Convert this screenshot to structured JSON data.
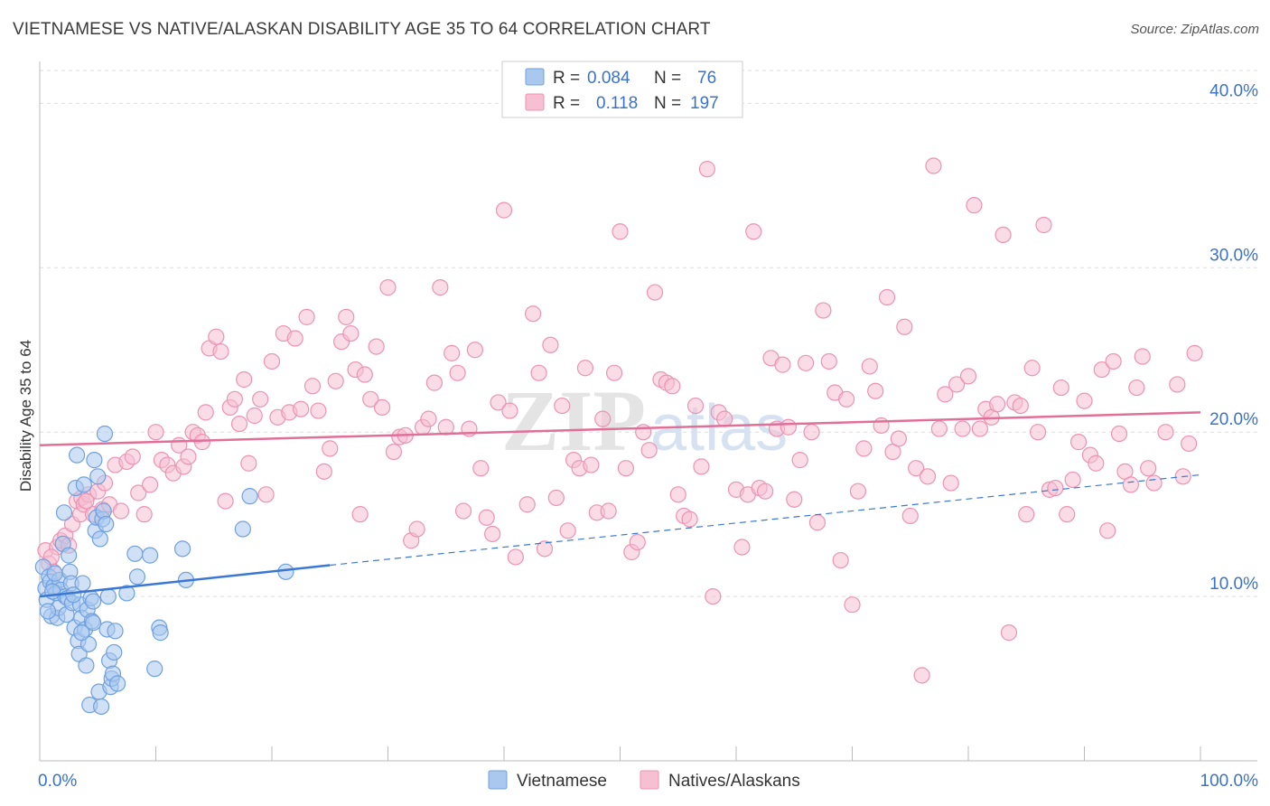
{
  "header": {
    "title": "VIETNAMESE VS NATIVE/ALASKAN DISABILITY AGE 35 TO 64 CORRELATION CHART",
    "source": "Source: ZipAtlas.com"
  },
  "legend": {
    "r_label": "R =",
    "n_label": "N =",
    "series": [
      {
        "r": "0.084",
        "n": "76"
      },
      {
        "r": "0.118",
        "n": "197"
      }
    ]
  },
  "watermark": {
    "zip": "ZIP",
    "atlas": "atlas"
  },
  "colors": {
    "blue_fill": "#aac8ee",
    "blue_stroke": "#6fa0e0",
    "blue_line": "#3a78d4",
    "pink_fill": "#f6bfd2",
    "pink_stroke": "#ec93b3",
    "pink_line": "#e07098",
    "axis_label": "#3a72c8"
  },
  "chart_data": {
    "type": "scatter",
    "title": "VIETNAMESE VS NATIVE/ALASKAN DISABILITY AGE 35 TO 64 CORRELATION CHART",
    "xlabel": "",
    "ylabel": "Disability Age 35 to 64",
    "xlim": [
      0,
      100
    ],
    "ylim": [
      0,
      42
    ],
    "x_tick_labels": [
      "0.0%",
      "100.0%"
    ],
    "y_ticks": [
      10,
      20,
      30,
      40
    ],
    "y_tick_labels": [
      "10.0%",
      "20.0%",
      "30.0%",
      "40.0%"
    ],
    "grid": true,
    "legend_position": "top-center",
    "series": [
      {
        "name": "Vietnamese",
        "r": 0.084,
        "n": 76,
        "trend": {
          "x0": 0,
          "y0": 10.0,
          "x1": 25,
          "y1": 11.9,
          "dashed_to_x": 100,
          "dashed_to_y": 17.4
        },
        "points": [
          [
            0.3,
            11.8
          ],
          [
            0.5,
            10.5
          ],
          [
            0.6,
            9.8
          ],
          [
            0.8,
            11.2
          ],
          [
            0.9,
            10.9
          ],
          [
            1.0,
            8.8
          ],
          [
            1.2,
            10.6
          ],
          [
            1.4,
            10.2
          ],
          [
            1.5,
            8.7
          ],
          [
            1.6,
            9.3
          ],
          [
            1.7,
            11.0
          ],
          [
            1.8,
            10.4
          ],
          [
            2.0,
            13.2
          ],
          [
            2.1,
            15.1
          ],
          [
            2.2,
            10.0
          ],
          [
            2.3,
            8.9
          ],
          [
            2.4,
            9.9
          ],
          [
            2.5,
            12.5
          ],
          [
            2.6,
            11.5
          ],
          [
            2.7,
            10.8
          ],
          [
            2.8,
            9.6
          ],
          [
            3.0,
            8.1
          ],
          [
            3.1,
            16.6
          ],
          [
            3.2,
            18.6
          ],
          [
            3.3,
            7.3
          ],
          [
            3.4,
            6.5
          ],
          [
            3.5,
            9.5
          ],
          [
            3.6,
            8.7
          ],
          [
            3.7,
            10.8
          ],
          [
            3.8,
            16.8
          ],
          [
            3.9,
            8.0
          ],
          [
            4.0,
            5.8
          ],
          [
            4.1,
            9.2
          ],
          [
            4.2,
            7.1
          ],
          [
            4.3,
            3.4
          ],
          [
            4.4,
            9.9
          ],
          [
            4.5,
            8.5
          ],
          [
            4.6,
            9.7
          ],
          [
            4.7,
            18.3
          ],
          [
            4.8,
            14.0
          ],
          [
            4.9,
            14.8
          ],
          [
            5.0,
            17.3
          ],
          [
            5.1,
            4.2
          ],
          [
            5.2,
            13.5
          ],
          [
            5.3,
            3.3
          ],
          [
            5.4,
            14.7
          ],
          [
            5.5,
            15.2
          ],
          [
            5.6,
            19.9
          ],
          [
            5.7,
            14.4
          ],
          [
            5.8,
            8.0
          ],
          [
            6.0,
            6.1
          ],
          [
            6.1,
            4.5
          ],
          [
            6.2,
            5.0
          ],
          [
            6.3,
            5.3
          ],
          [
            6.4,
            6.6
          ],
          [
            6.5,
            7.9
          ],
          [
            6.7,
            4.7
          ],
          [
            7.5,
            10.2
          ],
          [
            8.2,
            12.6
          ],
          [
            8.4,
            11.2
          ],
          [
            9.5,
            12.5
          ],
          [
            9.9,
            5.6
          ],
          [
            10.3,
            8.1
          ],
          [
            10.4,
            7.8
          ],
          [
            12.3,
            12.9
          ],
          [
            12.6,
            11.0
          ],
          [
            17.5,
            14.1
          ],
          [
            18.1,
            16.1
          ],
          [
            21.2,
            11.5
          ],
          [
            1.1,
            10.3
          ],
          [
            0.7,
            9.1
          ],
          [
            1.3,
            11.4
          ],
          [
            2.9,
            10.1
          ],
          [
            4.6,
            8.4
          ],
          [
            5.9,
            10.0
          ],
          [
            3.6,
            7.8
          ]
        ]
      },
      {
        "name": "Natives/Alaskans",
        "r": 0.118,
        "n": 197,
        "trend": {
          "x0": 0,
          "y0": 19.2,
          "x1": 100,
          "y1": 21.2
        },
        "points": [
          [
            0.5,
            12.8
          ],
          [
            0.8,
            12.0
          ],
          [
            1.2,
            11.5
          ],
          [
            1.5,
            13.0
          ],
          [
            1.8,
            13.4
          ],
          [
            2.2,
            13.7
          ],
          [
            2.8,
            14.4
          ],
          [
            3.2,
            15.8
          ],
          [
            3.5,
            15.0
          ],
          [
            3.6,
            16.0
          ],
          [
            3.8,
            15.6
          ],
          [
            4.2,
            16.2
          ],
          [
            4.6,
            15.0
          ],
          [
            5.0,
            16.4
          ],
          [
            5.4,
            15.3
          ],
          [
            5.6,
            16.9
          ],
          [
            6.0,
            15.6
          ],
          [
            6.5,
            18.0
          ],
          [
            7.0,
            15.2
          ],
          [
            7.5,
            18.2
          ],
          [
            8.0,
            18.5
          ],
          [
            8.5,
            16.3
          ],
          [
            9.0,
            15.0
          ],
          [
            9.5,
            16.8
          ],
          [
            10.0,
            20.0
          ],
          [
            10.5,
            18.3
          ],
          [
            11.0,
            18.0
          ],
          [
            11.5,
            17.5
          ],
          [
            12.0,
            19.2
          ],
          [
            12.4,
            17.9
          ],
          [
            12.8,
            18.5
          ],
          [
            13.2,
            20.0
          ],
          [
            13.6,
            19.8
          ],
          [
            14.0,
            19.4
          ],
          [
            14.3,
            21.2
          ],
          [
            14.6,
            25.1
          ],
          [
            15.2,
            25.8
          ],
          [
            15.6,
            24.9
          ],
          [
            16.0,
            15.8
          ],
          [
            16.4,
            21.5
          ],
          [
            16.8,
            22.0
          ],
          [
            17.2,
            20.5
          ],
          [
            17.6,
            23.2
          ],
          [
            18.0,
            18.1
          ],
          [
            18.5,
            21.0
          ],
          [
            19.0,
            22.0
          ],
          [
            19.5,
            16.2
          ],
          [
            20.0,
            24.3
          ],
          [
            20.5,
            20.9
          ],
          [
            21.0,
            26.0
          ],
          [
            21.5,
            21.2
          ],
          [
            22.0,
            25.7
          ],
          [
            22.5,
            21.4
          ],
          [
            23.0,
            27.0
          ],
          [
            23.5,
            22.8
          ],
          [
            24.0,
            21.3
          ],
          [
            24.5,
            17.6
          ],
          [
            25.0,
            19.0
          ],
          [
            25.5,
            23.1
          ],
          [
            26.0,
            25.5
          ],
          [
            26.4,
            27.0
          ],
          [
            26.8,
            26.0
          ],
          [
            27.2,
            23.8
          ],
          [
            27.6,
            15.0
          ],
          [
            28.0,
            23.5
          ],
          [
            28.5,
            22.0
          ],
          [
            29.0,
            25.2
          ],
          [
            29.5,
            21.5
          ],
          [
            30.0,
            28.8
          ],
          [
            30.5,
            18.8
          ],
          [
            31.0,
            19.7
          ],
          [
            31.5,
            19.8
          ],
          [
            32.0,
            13.4
          ],
          [
            32.5,
            14.1
          ],
          [
            33.0,
            20.3
          ],
          [
            33.5,
            20.8
          ],
          [
            34.0,
            23.0
          ],
          [
            34.5,
            28.8
          ],
          [
            35.0,
            20.3
          ],
          [
            35.5,
            24.8
          ],
          [
            36.0,
            23.6
          ],
          [
            36.5,
            15.2
          ],
          [
            37.0,
            20.2
          ],
          [
            37.5,
            25.0
          ],
          [
            38.0,
            17.8
          ],
          [
            38.5,
            14.8
          ],
          [
            39.0,
            13.8
          ],
          [
            39.5,
            21.8
          ],
          [
            40.0,
            33.5
          ],
          [
            40.5,
            21.3
          ],
          [
            41.0,
            12.4
          ],
          [
            42.0,
            15.6
          ],
          [
            42.5,
            27.2
          ],
          [
            43.0,
            23.6
          ],
          [
            43.5,
            12.9
          ],
          [
            44.0,
            25.3
          ],
          [
            44.5,
            16.0
          ],
          [
            45.0,
            21.6
          ],
          [
            45.5,
            14.0
          ],
          [
            46.0,
            18.3
          ],
          [
            46.5,
            17.8
          ],
          [
            47.0,
            23.9
          ],
          [
            47.5,
            18.0
          ],
          [
            48.0,
            15.1
          ],
          [
            48.5,
            20.8
          ],
          [
            49.0,
            15.2
          ],
          [
            49.5,
            23.6
          ],
          [
            50.0,
            32.2
          ],
          [
            50.5,
            17.8
          ],
          [
            51.0,
            12.7
          ],
          [
            51.5,
            13.3
          ],
          [
            52.0,
            20.0
          ],
          [
            52.5,
            18.9
          ],
          [
            53.0,
            28.5
          ],
          [
            53.5,
            23.2
          ],
          [
            54.0,
            23.0
          ],
          [
            54.5,
            22.8
          ],
          [
            55.0,
            16.2
          ],
          [
            55.5,
            14.9
          ],
          [
            56.0,
            14.7
          ],
          [
            56.5,
            21.6
          ],
          [
            57.0,
            17.9
          ],
          [
            57.5,
            36.0
          ],
          [
            58.0,
            10.0
          ],
          [
            58.5,
            21.2
          ],
          [
            59.0,
            20.8
          ],
          [
            60.0,
            16.5
          ],
          [
            60.5,
            13.0
          ],
          [
            61.0,
            16.2
          ],
          [
            61.5,
            32.2
          ],
          [
            62.0,
            16.6
          ],
          [
            62.5,
            16.4
          ],
          [
            63.0,
            24.5
          ],
          [
            63.5,
            20.2
          ],
          [
            64.0,
            24.1
          ],
          [
            64.5,
            20.3
          ],
          [
            65.0,
            15.9
          ],
          [
            65.5,
            18.3
          ],
          [
            66.0,
            24.2
          ],
          [
            66.5,
            20.0
          ],
          [
            67.0,
            14.5
          ],
          [
            67.5,
            27.4
          ],
          [
            68.0,
            24.3
          ],
          [
            68.5,
            22.4
          ],
          [
            69.0,
            12.2
          ],
          [
            69.5,
            22.0
          ],
          [
            70.0,
            9.5
          ],
          [
            70.5,
            16.4
          ],
          [
            71.0,
            19.0
          ],
          [
            71.5,
            24.0
          ],
          [
            72.0,
            22.5
          ],
          [
            72.5,
            20.4
          ],
          [
            73.0,
            28.2
          ],
          [
            73.5,
            18.8
          ],
          [
            74.0,
            19.6
          ],
          [
            74.5,
            26.4
          ],
          [
            75.0,
            14.9
          ],
          [
            75.5,
            17.8
          ],
          [
            76.0,
            5.2
          ],
          [
            76.5,
            17.3
          ],
          [
            77.0,
            36.2
          ],
          [
            77.5,
            20.2
          ],
          [
            78.0,
            22.3
          ],
          [
            78.5,
            16.9
          ],
          [
            79.0,
            22.9
          ],
          [
            79.5,
            20.2
          ],
          [
            80.0,
            23.4
          ],
          [
            80.5,
            33.8
          ],
          [
            81.0,
            20.2
          ],
          [
            81.5,
            21.4
          ],
          [
            82.0,
            20.9
          ],
          [
            82.5,
            21.7
          ],
          [
            83.0,
            32.0
          ],
          [
            83.5,
            7.8
          ],
          [
            84.0,
            21.8
          ],
          [
            84.5,
            21.6
          ],
          [
            85.0,
            15.0
          ],
          [
            85.5,
            23.9
          ],
          [
            86.0,
            20.0
          ],
          [
            86.5,
            32.6
          ],
          [
            87.0,
            16.5
          ],
          [
            87.5,
            16.6
          ],
          [
            88.0,
            22.7
          ],
          [
            88.5,
            15.0
          ],
          [
            89.0,
            17.1
          ],
          [
            89.5,
            19.4
          ],
          [
            90.0,
            21.9
          ],
          [
            90.5,
            18.6
          ],
          [
            91.0,
            18.1
          ],
          [
            91.5,
            23.8
          ],
          [
            92.0,
            14.0
          ],
          [
            92.5,
            24.3
          ],
          [
            93.0,
            19.9
          ],
          [
            93.5,
            17.6
          ],
          [
            94.0,
            16.8
          ],
          [
            94.5,
            22.7
          ],
          [
            95.0,
            24.6
          ],
          [
            95.5,
            17.8
          ],
          [
            96.0,
            16.9
          ],
          [
            97.0,
            20.0
          ],
          [
            98.0,
            22.9
          ],
          [
            98.5,
            17.3
          ],
          [
            99.0,
            19.3
          ],
          [
            99.5,
            24.8
          ],
          [
            1.0,
            12.4
          ],
          [
            2.5,
            13.1
          ],
          [
            4.0,
            15.8
          ]
        ]
      }
    ]
  }
}
